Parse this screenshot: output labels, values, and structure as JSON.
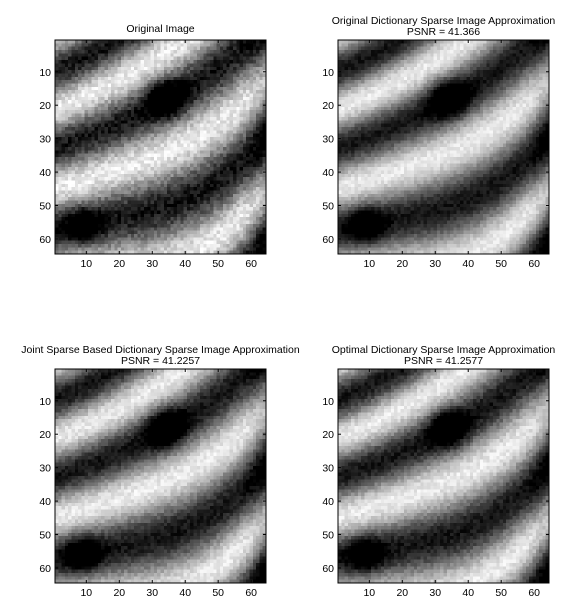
{
  "chart_data": [
    {
      "type": "heatmap",
      "title": "Original Image",
      "subtitle": "",
      "xlim": [
        0.5,
        64.5
      ],
      "ylim": [
        0.5,
        64.5
      ],
      "y_direction": "reversed",
      "xticks": [
        10,
        20,
        30,
        40,
        50,
        60
      ],
      "yticks": [
        10,
        20,
        30,
        40,
        50,
        60
      ],
      "colormap": "gray",
      "image_size": [
        64,
        64
      ],
      "seed": 11,
      "noise": 0.1
    },
    {
      "type": "heatmap",
      "title": "Original Dictionary Sparse Image Approximation",
      "subtitle": "PSNR = 41.366",
      "xlim": [
        0.5,
        64.5
      ],
      "ylim": [
        0.5,
        64.5
      ],
      "y_direction": "reversed",
      "xticks": [
        10,
        20,
        30,
        40,
        50,
        60
      ],
      "yticks": [
        10,
        20,
        30,
        40,
        50,
        60
      ],
      "colormap": "gray",
      "image_size": [
        64,
        64
      ],
      "seed": 23,
      "noise": 0.06
    },
    {
      "type": "heatmap",
      "title": "Joint Sparse Based Dictionary Sparse Image Approximation",
      "subtitle": "PSNR = 41.2257",
      "xlim": [
        0.5,
        64.5
      ],
      "ylim": [
        0.5,
        64.5
      ],
      "y_direction": "reversed",
      "xticks": [
        10,
        20,
        30,
        40,
        50,
        60
      ],
      "yticks": [
        10,
        20,
        30,
        40,
        50,
        60
      ],
      "colormap": "gray",
      "image_size": [
        64,
        64
      ],
      "seed": 37,
      "noise": 0.07
    },
    {
      "type": "heatmap",
      "title": "Optimal Dictionary Sparse Image Approximation",
      "subtitle": "PSNR = 41.2577",
      "xlim": [
        0.5,
        64.5
      ],
      "ylim": [
        0.5,
        64.5
      ],
      "y_direction": "reversed",
      "xticks": [
        10,
        20,
        30,
        40,
        50,
        60
      ],
      "yticks": [
        10,
        20,
        30,
        40,
        50,
        60
      ],
      "colormap": "gray",
      "image_size": [
        64,
        64
      ],
      "seed": 41,
      "noise": 0.07
    }
  ]
}
